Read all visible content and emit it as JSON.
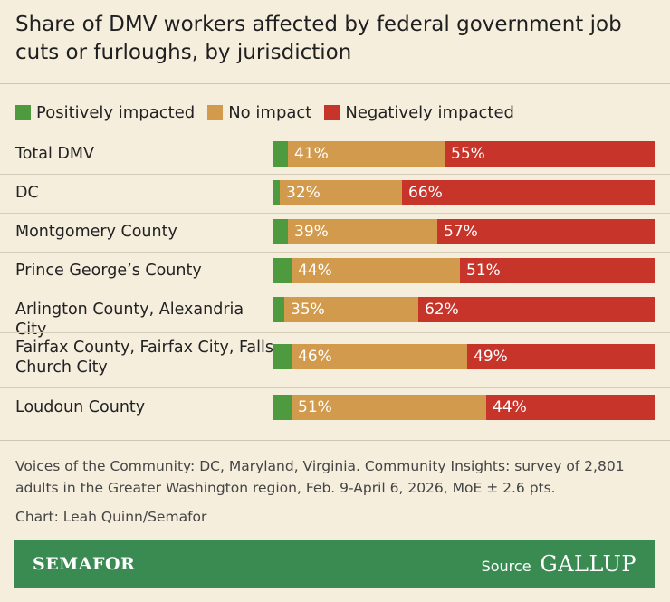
{
  "title": "Share of DMV workers affected by federal government job cuts or furloughs, by jurisdiction",
  "colors": {
    "positive": "#4E9A3E",
    "none": "#D29A4C",
    "negative": "#C7342A",
    "background": "#F5EEDD",
    "footer": "#3A8B52"
  },
  "chart_data": {
    "type": "bar",
    "orientation": "horizontal",
    "stacked": true,
    "title": "Share of DMV workers affected by federal government job cuts or furloughs, by jurisdiction",
    "legend_position": "top-left",
    "categories": [
      "Total DMV",
      "DC",
      "Montgomery County",
      "Prince George’s County",
      "Arlington County, Alexandria City",
      "Fairfax County, Fairfax City, Falls Church City",
      "Loudoun County"
    ],
    "series": [
      {
        "name": "Positively impacted",
        "values": [
          4,
          2,
          4,
          5,
          3,
          5,
          5
        ],
        "labels": [
          "",
          "",
          "",
          "",
          "",
          "",
          ""
        ]
      },
      {
        "name": "No impact",
        "values": [
          41,
          32,
          39,
          44,
          35,
          46,
          51
        ],
        "labels": [
          "41%",
          "32%",
          "39%",
          "44%",
          "35%",
          "46%",
          "51%"
        ]
      },
      {
        "name": "Negatively impacted",
        "values": [
          55,
          66,
          57,
          51,
          62,
          49,
          44
        ],
        "labels": [
          "55%",
          "66%",
          "57%",
          "51%",
          "62%",
          "49%",
          "44%"
        ]
      }
    ],
    "xlim": [
      0,
      100
    ]
  },
  "note": "Voices of the Community: DC, Maryland, Virginia. Community Insights: survey of 2,801 adults in the Greater Washington region, Feb. 9-April 6, 2026, MoE ± 2.6 pts.",
  "credit": "Chart: Leah Quinn/Semafor",
  "footer": {
    "brand": "SEMAFOR",
    "source_label": "Source",
    "source_logo": "GALLUP"
  }
}
